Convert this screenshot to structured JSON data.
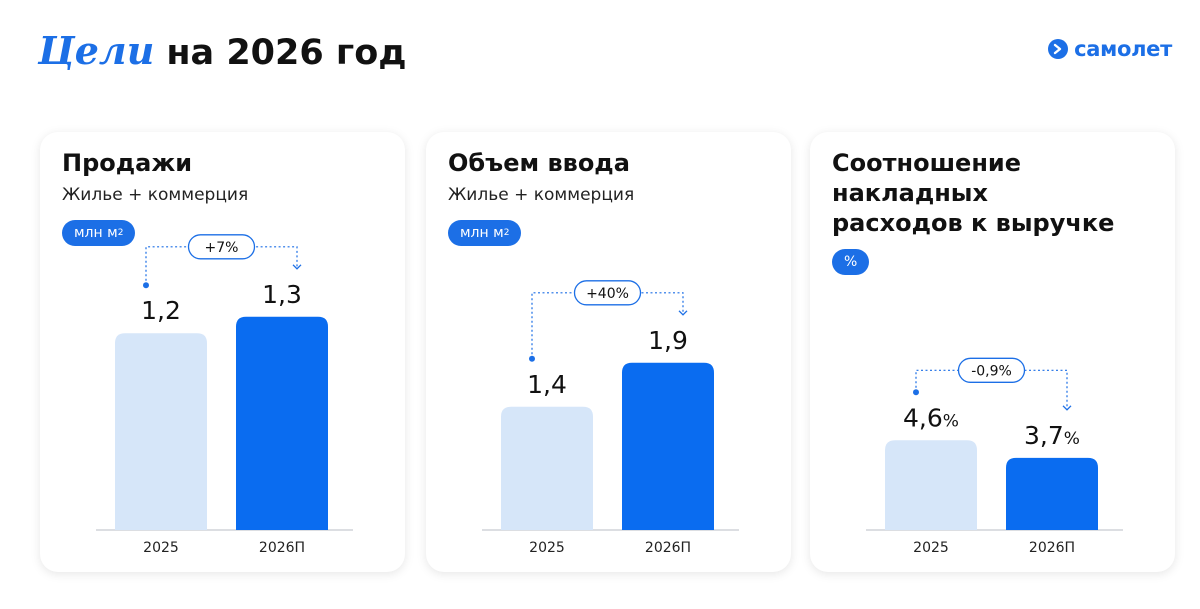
{
  "header": {
    "title_accent": "Цели",
    "title_main": "на 2026 год"
  },
  "logo": {
    "text": "самолет",
    "icon": "arrow-right-icon"
  },
  "colors": {
    "accent": "#1c6fe6",
    "bar_2025": "#d6e6f9",
    "bar_2026": "#0a6cf0",
    "baseline": "#c7cbd1"
  },
  "chart_data": [
    {
      "type": "bar",
      "title": "Продажи",
      "subtitle": "Жилье + коммерция",
      "unit": "млн м",
      "unit_superscript": "2",
      "categories": [
        "2025",
        "2026П"
      ],
      "values": [
        1.2,
        1.3
      ],
      "data_labels": [
        "1,2",
        "1,3"
      ],
      "value_suffix": "",
      "change_label": "+7%"
    },
    {
      "type": "bar",
      "title": "Объем ввода",
      "subtitle": "Жилье + коммерция",
      "unit": "млн м",
      "unit_superscript": "2",
      "categories": [
        "2025",
        "2026П"
      ],
      "values": [
        1.4,
        1.9
      ],
      "data_labels": [
        "1,4",
        "1,9"
      ],
      "value_suffix": "",
      "change_label": "+40%"
    },
    {
      "type": "bar",
      "title": "Соотношение\nнакладных\nрасходов к выручке",
      "subtitle": "",
      "unit": "%",
      "unit_superscript": "",
      "categories": [
        "2025",
        "2026П"
      ],
      "values": [
        4.6,
        3.7
      ],
      "data_labels": [
        "4,6",
        "3,7"
      ],
      "value_suffix": "%",
      "change_label": "-0,9%"
    }
  ]
}
